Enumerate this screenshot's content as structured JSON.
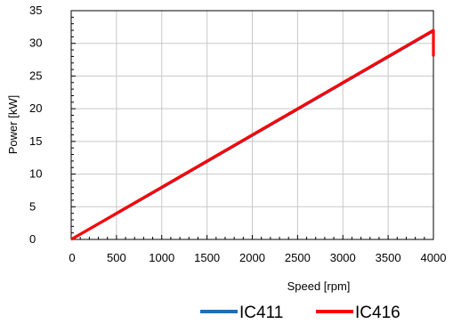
{
  "chart_data": {
    "type": "line",
    "xlabel": "Speed [rpm]",
    "ylabel": "Power [kW]",
    "xlim": [
      0,
      4000
    ],
    "ylim": [
      0,
      35
    ],
    "x_ticks": [
      0,
      500,
      1000,
      1500,
      2000,
      2500,
      3000,
      3500,
      4000
    ],
    "y_ticks": [
      0,
      5,
      10,
      15,
      20,
      25,
      30,
      35
    ],
    "grid": true,
    "legend_position": "bottom-right",
    "series": [
      {
        "name": "IC411",
        "color": "#1f6fb4",
        "points": [
          [
            0,
            0
          ],
          [
            1000,
            7.9
          ],
          [
            2000,
            15.9
          ],
          [
            3000,
            23.9
          ],
          [
            4000,
            31.9
          ],
          [
            4000,
            30.5
          ]
        ]
      },
      {
        "name": "IC416",
        "color": "#ff0000",
        "points": [
          [
            0,
            0
          ],
          [
            1000,
            8.0
          ],
          [
            2000,
            16.0
          ],
          [
            3000,
            24.0
          ],
          [
            4000,
            32.0
          ],
          [
            4000,
            28.0
          ]
        ]
      }
    ]
  }
}
